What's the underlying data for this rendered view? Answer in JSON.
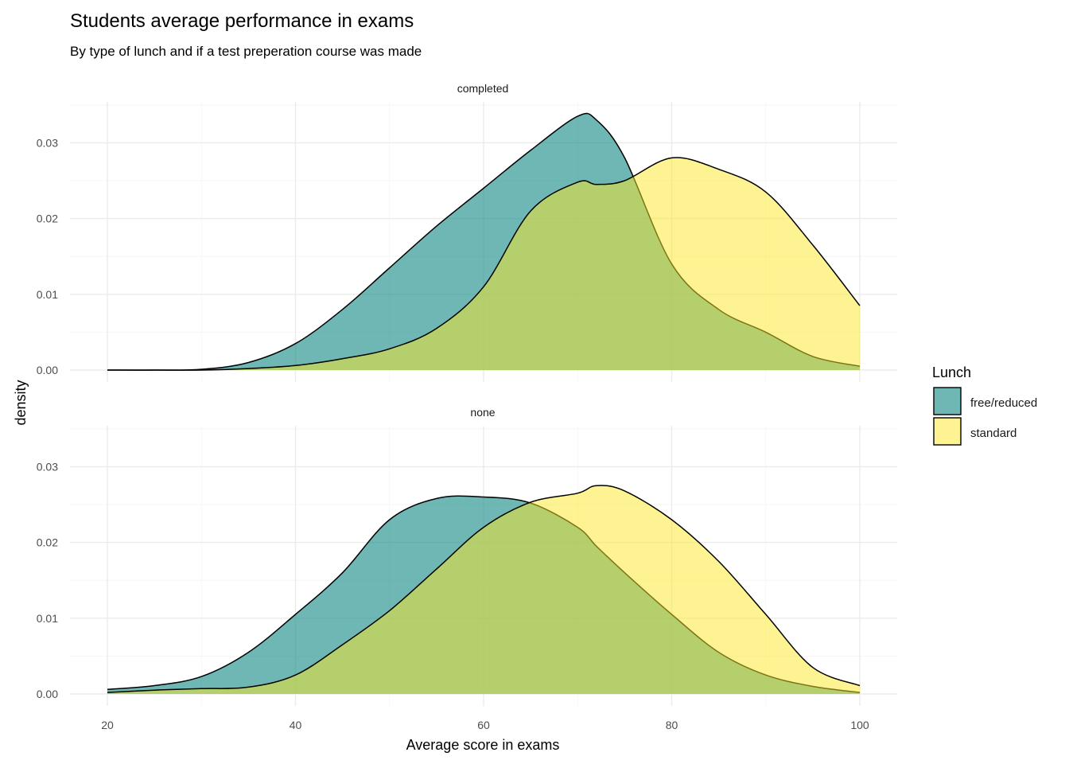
{
  "chart_data": {
    "type": "area",
    "title": "Students average performance in exams",
    "subtitle": "By type of lunch and if a test preperation course was made",
    "xlabel": "Average score in exams",
    "ylabel": "density",
    "xlim": [
      20,
      100
    ],
    "ylim": [
      0,
      0.035
    ],
    "x_ticks": [
      "20",
      "40",
      "60",
      "80",
      "100"
    ],
    "y_ticks": [
      "0.00",
      "0.01",
      "0.02",
      "0.03"
    ],
    "grid": true,
    "legend": {
      "title": "Lunch",
      "position": "right",
      "items": [
        {
          "label": "free/reduced",
          "color": "#21908C"
        },
        {
          "label": "standard",
          "color": "#FDE725"
        }
      ]
    },
    "x": [
      20,
      25,
      30,
      35,
      40,
      45,
      50,
      55,
      60,
      65,
      70,
      72,
      75,
      80,
      85,
      90,
      95,
      100
    ],
    "facets": [
      {
        "label": "completed",
        "series": [
          {
            "name": "free/reduced",
            "values": [
              0.0,
              0.0,
              0.0001,
              0.001,
              0.0035,
              0.008,
              0.0135,
              0.019,
              0.024,
              0.029,
              0.0335,
              0.033,
              0.028,
              0.014,
              0.008,
              0.005,
              0.0018,
              0.0005
            ]
          },
          {
            "name": "standard",
            "values": [
              0.0,
              0.0,
              0.0,
              0.0002,
              0.0006,
              0.0015,
              0.0028,
              0.0055,
              0.011,
              0.021,
              0.0248,
              0.0245,
              0.025,
              0.028,
              0.0265,
              0.0235,
              0.0165,
              0.0085
            ]
          }
        ]
      },
      {
        "label": "none",
        "series": [
          {
            "name": "free/reduced",
            "values": [
              0.0006,
              0.0011,
              0.0023,
              0.0055,
              0.0105,
              0.016,
              0.023,
              0.0258,
              0.026,
              0.0252,
              0.022,
              0.0195,
              0.016,
              0.0105,
              0.0055,
              0.0025,
              0.001,
              0.0002
            ]
          },
          {
            "name": "standard",
            "values": [
              0.0002,
              0.0005,
              0.0007,
              0.0009,
              0.0025,
              0.0065,
              0.011,
              0.0165,
              0.022,
              0.0253,
              0.0265,
              0.0275,
              0.0268,
              0.023,
              0.0175,
              0.0105,
              0.0035,
              0.0011
            ]
          }
        ]
      }
    ]
  }
}
